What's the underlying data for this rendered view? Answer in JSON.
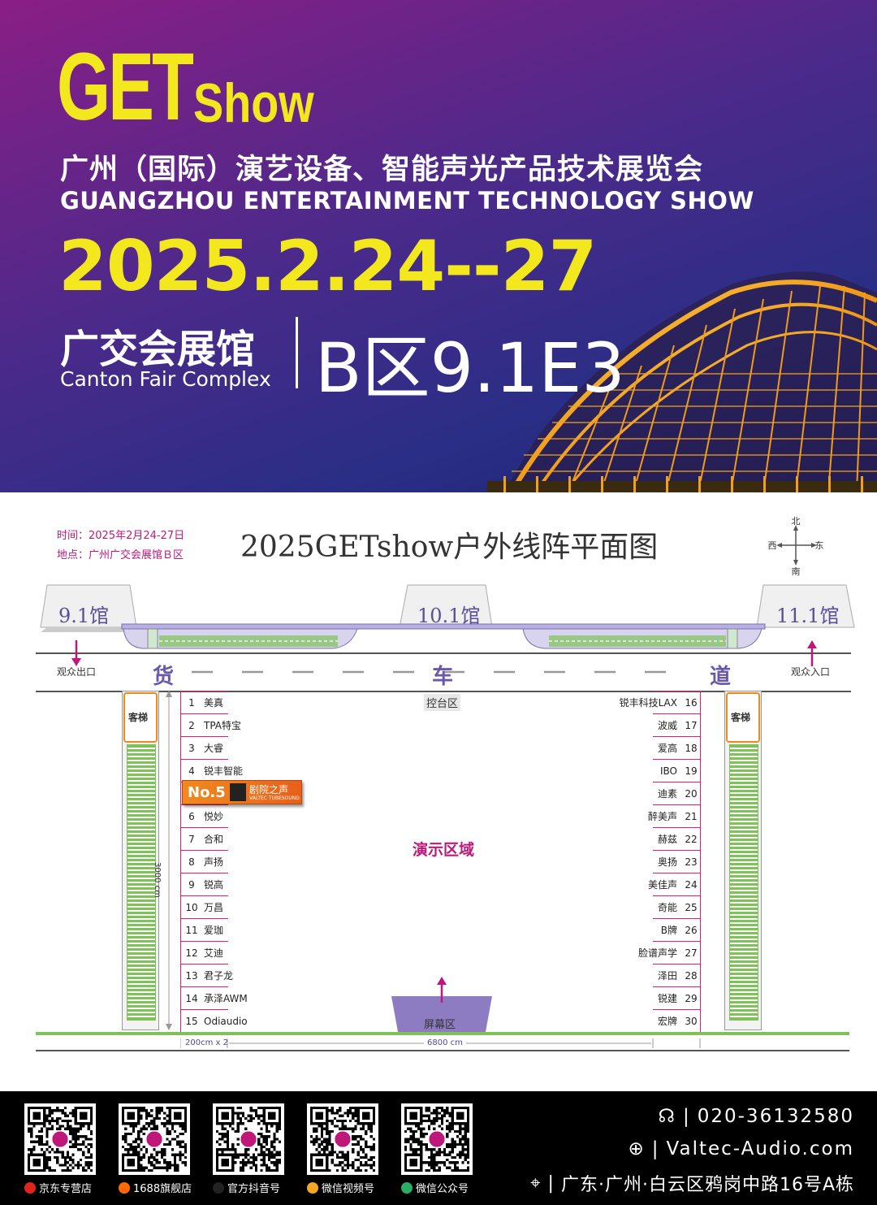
{
  "banner": {
    "logo_get": "GET",
    "logo_show": "Show",
    "title_cn": "广州（国际）演艺设备、智能声光产品技术展览会",
    "title_en": "GUANGZHOU ENTERTAINMENT TECHNOLOGY SHOW",
    "date": "2025.2.24--27",
    "venue_cn": "广交会展馆",
    "venue_en": "Canton Fair Complex",
    "booth": "B区9.1E3",
    "colors": {
      "accent_yellow": "#f3e81e",
      "bg_top": "#8a1e86",
      "bg_bottom": "#1c2370",
      "hall_gold": "#f0a020"
    }
  },
  "plan": {
    "info_time": "时间：2025年2月24-27日",
    "info_place": "地点：广州广交会展馆Ｂ区",
    "title": "2025GETshow户外线阵平面图",
    "compass": {
      "north": "北",
      "south": "南",
      "west": "西",
      "east": "东"
    },
    "halls": [
      "9.1馆",
      "10.1馆",
      "11.1馆"
    ],
    "road_words": [
      "货",
      "车",
      "道"
    ],
    "exit_label": "观众出口",
    "entrance_label": "观众入口",
    "control_area": "控台区",
    "demo_area": "演示区域",
    "screen_area": "屏幕区",
    "elevator": "客梯",
    "dim_depth": "3000 cm",
    "dim_booth": "200cm x 2",
    "dim_width": "6800 cm",
    "left_booths": [
      {
        "num": "1",
        "name": "美真"
      },
      {
        "num": "2",
        "name": "TPA特宝"
      },
      {
        "num": "3",
        "name": "大睿"
      },
      {
        "num": "4",
        "name": "锐丰智能"
      },
      {
        "num": "",
        "name": ""
      },
      {
        "num": "6",
        "name": "悦妙"
      },
      {
        "num": "7",
        "name": "合和"
      },
      {
        "num": "8",
        "name": "声扬"
      },
      {
        "num": "9",
        "name": "锐高"
      },
      {
        "num": "10",
        "name": "万昌"
      },
      {
        "num": "11",
        "name": "爱珈"
      },
      {
        "num": "12",
        "name": "艾迪"
      },
      {
        "num": "13",
        "name": "君子龙"
      },
      {
        "num": "14",
        "name": "承泽AWM"
      },
      {
        "num": "15",
        "name": "Odiaudio"
      }
    ],
    "right_booths": [
      {
        "num": "16",
        "name": "锐丰科技LAX"
      },
      {
        "num": "17",
        "name": "波威"
      },
      {
        "num": "18",
        "name": "爱高"
      },
      {
        "num": "19",
        "name": "IBO"
      },
      {
        "num": "20",
        "name": "迪素"
      },
      {
        "num": "21",
        "name": "醉美声"
      },
      {
        "num": "22",
        "name": "赫兹"
      },
      {
        "num": "23",
        "name": "奥扬"
      },
      {
        "num": "24",
        "name": "美佳声"
      },
      {
        "num": "25",
        "name": "奇能"
      },
      {
        "num": "26",
        "name": "B牌"
      },
      {
        "num": "27",
        "name": "脸谱声学"
      },
      {
        "num": "28",
        "name": "泽田"
      },
      {
        "num": "29",
        "name": "锐建"
      },
      {
        "num": "30",
        "name": "宏牌"
      }
    ],
    "highlight": {
      "label": "No.5",
      "brand": "剧院之声",
      "brand_en": "VALTEC TUBESOUND"
    }
  },
  "footer": {
    "qr_labels": [
      "京东专营店",
      "1688旗舰店",
      "官方抖音号",
      "微信视频号",
      "微信公众号"
    ],
    "phone": "020-36132580",
    "website": "Valtec-Audio.com",
    "address": "广东·广州·白云区鸦岗中路16号A栋",
    "separator": "|"
  }
}
